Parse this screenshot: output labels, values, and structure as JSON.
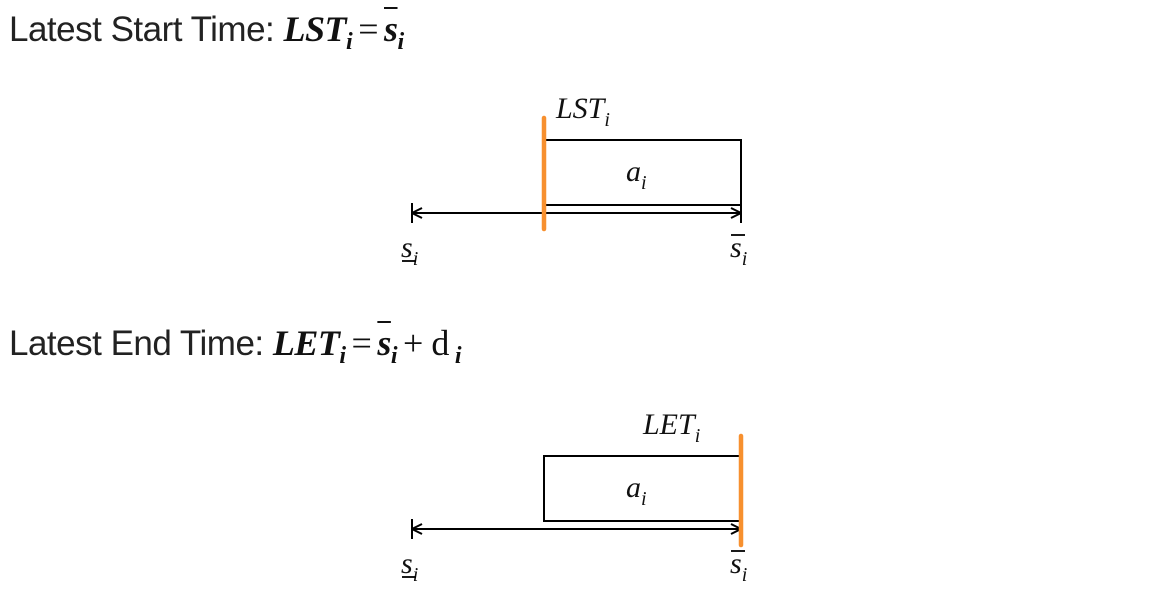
{
  "sections": [
    {
      "heading_text": "Latest Start Time: ",
      "formula": {
        "main": "LST",
        "sub": "i",
        "op": "=",
        "rhs_main": "s",
        "rhs_sub": "i",
        "rhs_tail": ""
      },
      "diagram": {
        "marker_label": {
          "main": "LST",
          "sub": "i"
        },
        "activity_label": {
          "main": "a",
          "sub": "i"
        },
        "left_label": {
          "main": "s",
          "sub": "i"
        },
        "right_label": {
          "main": "s",
          "sub": "i"
        },
        "marker_position": "start"
      }
    },
    {
      "heading_text": "Latest End Time: ",
      "formula": {
        "main": "LET",
        "sub": "i",
        "op": "=",
        "rhs_main": "s",
        "rhs_sub": "i",
        "rhs_tail": "+ d",
        "rhs_tail_sub": "i"
      },
      "diagram": {
        "marker_label": {
          "main": "LET",
          "sub": "i"
        },
        "activity_label": {
          "main": "a",
          "sub": "i"
        },
        "left_label": {
          "main": "s",
          "sub": "i"
        },
        "right_label": {
          "main": "s",
          "sub": "i"
        },
        "marker_position": "end"
      }
    }
  ],
  "colors": {
    "marker": "#f7902f",
    "line": "#000000"
  }
}
